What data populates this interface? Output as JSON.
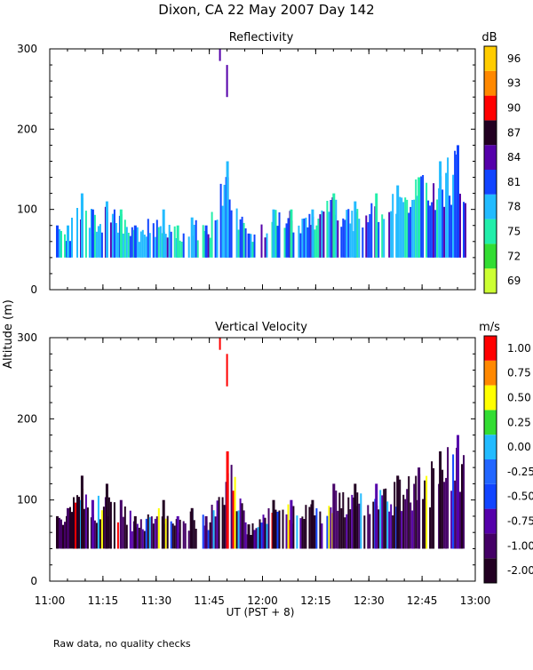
{
  "page": {
    "title": "Dixon, CA 22 May 2007  Day 142",
    "footnote": "Raw data, no quality checks",
    "ylabel": "Altitude (m)",
    "xlabel": "UT  (PST + 8)"
  },
  "chart_data": [
    {
      "type": "heatmap",
      "title": "Reflectivity",
      "xlim": [
        "11:00",
        "13:00"
      ],
      "xticks": [
        "11:00",
        "11:15",
        "11:30",
        "11:45",
        "12:00",
        "12:15",
        "12:30",
        "12:45",
        "13:00"
      ],
      "ylim": [
        0,
        300
      ],
      "yticks": [
        0,
        100,
        200,
        300
      ],
      "colorbar": {
        "unit": "dB",
        "levels": [
          69,
          72,
          75,
          78,
          81,
          84,
          87,
          90,
          93,
          96
        ],
        "colors": [
          "#ccff33",
          "#33dd33",
          "#22eeaa",
          "#22bbff",
          "#1144ff",
          "#5500aa",
          "#220022",
          "#ff0000",
          "#ff8800",
          "#ffcc00"
        ]
      },
      "sampled_columns": [
        {
          "t": "11:02",
          "bottom": 40,
          "top": 80,
          "color": "#1144ff"
        },
        {
          "t": "11:05",
          "bottom": 40,
          "top": 80,
          "color": "#22bbff"
        },
        {
          "t": "11:09",
          "bottom": 40,
          "top": 120,
          "color": "#22bbff"
        },
        {
          "t": "11:12",
          "bottom": 40,
          "top": 100,
          "color": "#1144ff"
        },
        {
          "t": "11:16",
          "bottom": 40,
          "top": 110,
          "color": "#22bbff"
        },
        {
          "t": "11:20",
          "bottom": 40,
          "top": 100,
          "color": "#22eeaa"
        },
        {
          "t": "11:24",
          "bottom": 40,
          "top": 80,
          "color": "#1144ff"
        },
        {
          "t": "11:32",
          "bottom": 40,
          "top": 100,
          "color": "#22bbff"
        },
        {
          "t": "11:36",
          "bottom": 40,
          "top": 80,
          "color": "#22eeaa"
        },
        {
          "t": "11:40",
          "bottom": 40,
          "top": 90,
          "color": "#22bbff"
        },
        {
          "t": "11:44",
          "bottom": 40,
          "top": 80,
          "color": "#1144ff"
        },
        {
          "t": "11:50",
          "bottom": 40,
          "top": 160,
          "color": "#22bbff"
        },
        {
          "t": "11:56",
          "bottom": 40,
          "top": 70,
          "color": "#1144ff"
        },
        {
          "t": "12:03",
          "bottom": 40,
          "top": 100,
          "color": "#22bbff"
        },
        {
          "t": "12:08",
          "bottom": 40,
          "top": 100,
          "color": "#22eeaa"
        },
        {
          "t": "12:14",
          "bottom": 40,
          "top": 100,
          "color": "#22bbff"
        },
        {
          "t": "12:20",
          "bottom": 40,
          "top": 120,
          "color": "#22eeaa"
        },
        {
          "t": "12:26",
          "bottom": 40,
          "top": 110,
          "color": "#22bbff"
        },
        {
          "t": "12:32",
          "bottom": 40,
          "top": 120,
          "color": "#22eeaa"
        },
        {
          "t": "12:38",
          "bottom": 40,
          "top": 130,
          "color": "#22bbff"
        },
        {
          "t": "12:44",
          "bottom": 40,
          "top": 140,
          "color": "#22eeaa"
        },
        {
          "t": "12:50",
          "bottom": 40,
          "top": 160,
          "color": "#22bbff"
        },
        {
          "t": "12:55",
          "bottom": 40,
          "top": 180,
          "color": "#1144ff"
        }
      ],
      "isolated_echoes": [
        {
          "t": "11:48",
          "bottom": 285,
          "top": 300,
          "color": "#5500aa"
        },
        {
          "t": "11:50",
          "bottom": 240,
          "top": 280,
          "color": "#5500aa"
        }
      ]
    },
    {
      "type": "heatmap",
      "title": "Vertical Velocity",
      "xlim": [
        "11:00",
        "13:00"
      ],
      "xticks": [
        "11:00",
        "11:15",
        "11:30",
        "11:45",
        "12:00",
        "12:15",
        "12:30",
        "12:45",
        "13:00"
      ],
      "ylim": [
        0,
        300
      ],
      "yticks": [
        0,
        100,
        200,
        300
      ],
      "colorbar": {
        "unit": "m/s",
        "levels": [
          "-2.00",
          "-1.00",
          "-0.75",
          "-0.50",
          "-0.25",
          "0.00",
          "0.25",
          "0.50",
          "0.75",
          "1.00"
        ],
        "colors": [
          "#220022",
          "#440066",
          "#5500aa",
          "#1144ff",
          "#2266ff",
          "#22bbff",
          "#33dd33",
          "#ffff00",
          "#ff8800",
          "#ff0000"
        ]
      },
      "sampled_columns": [
        {
          "t": "11:02",
          "bottom": 40,
          "top": 80,
          "color": "#220022"
        },
        {
          "t": "11:05",
          "bottom": 40,
          "top": 90,
          "color": "#440066"
        },
        {
          "t": "11:09",
          "bottom": 40,
          "top": 130,
          "color": "#220022"
        },
        {
          "t": "11:12",
          "bottom": 40,
          "top": 100,
          "color": "#5500aa"
        },
        {
          "t": "11:16",
          "bottom": 40,
          "top": 120,
          "color": "#220022"
        },
        {
          "t": "11:20",
          "bottom": 40,
          "top": 100,
          "color": "#440066"
        },
        {
          "t": "11:24",
          "bottom": 40,
          "top": 80,
          "color": "#220022"
        },
        {
          "t": "11:32",
          "bottom": 40,
          "top": 100,
          "color": "#220022"
        },
        {
          "t": "11:36",
          "bottom": 40,
          "top": 80,
          "color": "#5500aa"
        },
        {
          "t": "11:40",
          "bottom": 40,
          "top": 90,
          "color": "#220022"
        },
        {
          "t": "11:44",
          "bottom": 40,
          "top": 80,
          "color": "#440066"
        },
        {
          "t": "11:50",
          "bottom": 40,
          "top": 160,
          "color": "#ff0000"
        },
        {
          "t": "11:56",
          "bottom": 40,
          "top": 70,
          "color": "#220022"
        },
        {
          "t": "12:03",
          "bottom": 40,
          "top": 100,
          "color": "#220022"
        },
        {
          "t": "12:08",
          "bottom": 40,
          "top": 100,
          "color": "#5500aa"
        },
        {
          "t": "12:14",
          "bottom": 40,
          "top": 100,
          "color": "#220022"
        },
        {
          "t": "12:20",
          "bottom": 40,
          "top": 120,
          "color": "#440066"
        },
        {
          "t": "12:26",
          "bottom": 40,
          "top": 120,
          "color": "#220022"
        },
        {
          "t": "12:32",
          "bottom": 40,
          "top": 120,
          "color": "#5500aa"
        },
        {
          "t": "12:38",
          "bottom": 40,
          "top": 130,
          "color": "#220022"
        },
        {
          "t": "12:44",
          "bottom": 40,
          "top": 140,
          "color": "#440066"
        },
        {
          "t": "12:50",
          "bottom": 40,
          "top": 160,
          "color": "#220022"
        },
        {
          "t": "12:55",
          "bottom": 40,
          "top": 180,
          "color": "#5500aa"
        }
      ],
      "isolated_echoes": [
        {
          "t": "11:48",
          "bottom": 285,
          "top": 300,
          "color": "#ff0000"
        },
        {
          "t": "11:50",
          "bottom": 240,
          "top": 280,
          "color": "#ff0000"
        }
      ]
    }
  ]
}
